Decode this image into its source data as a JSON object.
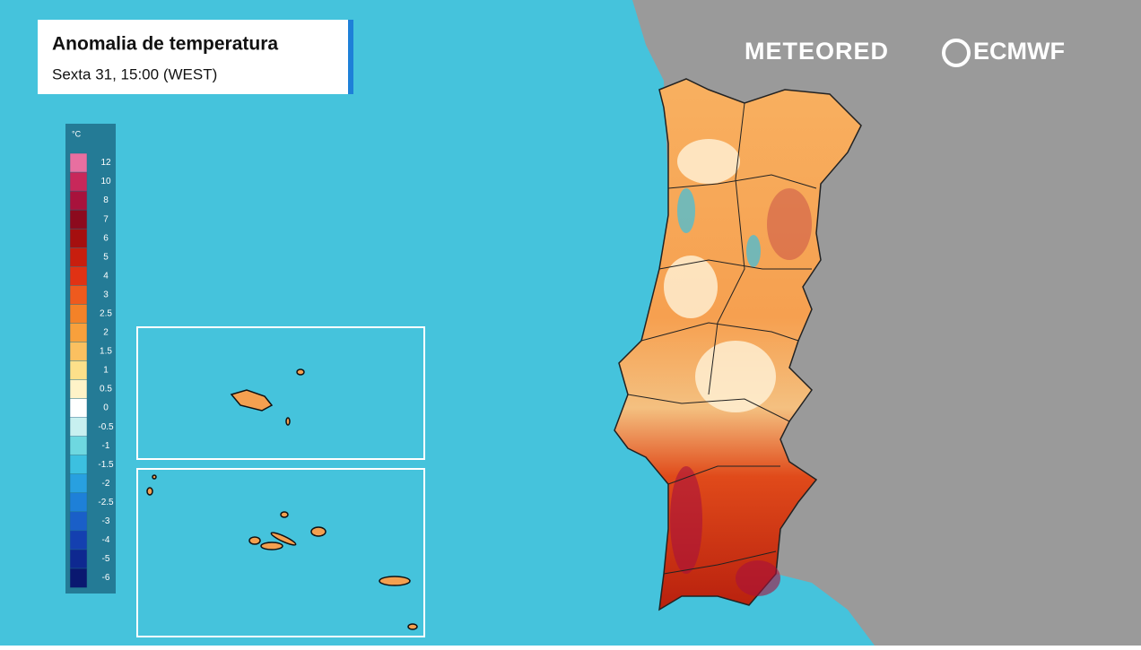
{
  "header": {
    "title": "Anomalia de temperatura",
    "subtitle": "Sexta 31, 15:00 (WEST)"
  },
  "brands": [
    "METEORED",
    "ECMWF"
  ],
  "legend": {
    "unit": "°C",
    "ticks": [
      12,
      10,
      8,
      7,
      6,
      5,
      4,
      3,
      2.5,
      2,
      1.5,
      1,
      0.5,
      0,
      -0.5,
      -1,
      -1.5,
      -2,
      -2.5,
      -3,
      -4,
      -5,
      -6
    ],
    "colors": [
      "#e86fa0",
      "#c8285a",
      "#a8123c",
      "#8c0a1e",
      "#a50f0f",
      "#c81e0e",
      "#e03214",
      "#ee5a1e",
      "#f48228",
      "#f8a03c",
      "#fbc060",
      "#fde08a",
      "#fff3c8",
      "#ffffff",
      "#c8f0f0",
      "#6ed8e0",
      "#3cc0e0",
      "#28a0e0",
      "#1e80d8",
      "#1a5fc8",
      "#1440b0",
      "#0e2890",
      "#0a1870"
    ]
  }
}
